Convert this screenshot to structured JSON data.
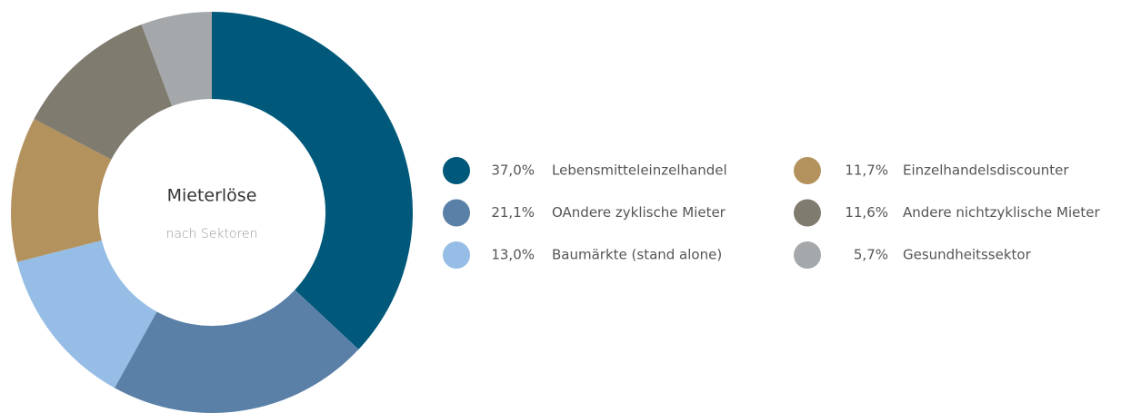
{
  "chart_data": {
    "type": "donut",
    "title": "Mieterlöse",
    "subtitle": "nach Sektoren",
    "categories": [
      "Lebensmitteleinzelhandel",
      "OAndere zyklische Mieter",
      "Baumärkte (stand alone)",
      "Einzelhandelsdiscounter",
      "Andere nichtzyklische Mieter",
      "Gesundheitssektor"
    ],
    "values": [
      37.0,
      21.1,
      13.0,
      11.7,
      11.6,
      5.7
    ],
    "value_labels": [
      "37,0%",
      "21,1%",
      "13,0%",
      "11,7%",
      "11,6%",
      "5,7%"
    ],
    "colors": [
      "#00587a",
      "#5b80a8",
      "#96bde6",
      "#b3925e",
      "#807b6f",
      "#a5a8ab"
    ],
    "legend": "right"
  }
}
